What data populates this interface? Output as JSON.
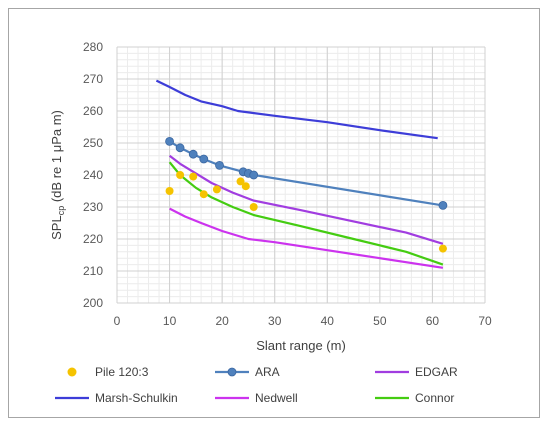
{
  "chart_data": {
    "type": "line",
    "xlabel": "Slant range (m)",
    "ylabel_main": "SPL",
    "ylabel_sub": "cp",
    "ylabel_rest": " (dB re 1 μPa m)",
    "xlim": [
      0,
      70
    ],
    "ylim": [
      200,
      280
    ],
    "x_ticks": [
      0,
      10,
      20,
      30,
      40,
      50,
      60,
      70
    ],
    "y_ticks": [
      200,
      210,
      220,
      230,
      240,
      250,
      260,
      270,
      280
    ],
    "grid": true,
    "legend_position": "bottom",
    "series": [
      {
        "name": "Pile 120:3",
        "kind": "scatter",
        "color": "#f5c300",
        "points": [
          [
            10,
            235
          ],
          [
            12,
            240
          ],
          [
            14.5,
            239.5
          ],
          [
            16.5,
            234
          ],
          [
            19,
            235.5
          ],
          [
            23.5,
            238
          ],
          [
            24.5,
            236.5
          ],
          [
            26,
            230
          ],
          [
            62,
            217
          ]
        ]
      },
      {
        "name": "ARA",
        "kind": "line-markers",
        "color": "#4f81bd",
        "points": [
          [
            10,
            250.5
          ],
          [
            12,
            248.5
          ],
          [
            14.5,
            246.5
          ],
          [
            16.5,
            245
          ],
          [
            19.5,
            243
          ],
          [
            24,
            241
          ],
          [
            25,
            240.5
          ],
          [
            26,
            240
          ],
          [
            62,
            230.5
          ]
        ]
      },
      {
        "name": "EDGAR",
        "kind": "line",
        "color": "#a13de0",
        "points": [
          [
            10,
            246
          ],
          [
            12,
            243.5
          ],
          [
            15,
            240.5
          ],
          [
            18,
            237.5
          ],
          [
            22,
            234.5
          ],
          [
            26,
            232
          ],
          [
            35,
            229
          ],
          [
            45,
            225.5
          ],
          [
            55,
            222
          ],
          [
            62,
            218.5
          ]
        ]
      },
      {
        "name": "Marsh-Schulkin",
        "kind": "line",
        "color": "#3d3dd8",
        "points": [
          [
            7.5,
            269.5
          ],
          [
            10,
            267.5
          ],
          [
            13,
            265
          ],
          [
            16,
            263
          ],
          [
            20,
            261.5
          ],
          [
            23,
            260
          ],
          [
            30,
            258.5
          ],
          [
            40,
            256.5
          ],
          [
            50,
            254
          ],
          [
            61,
            251.5
          ]
        ]
      },
      {
        "name": "Nedwell",
        "kind": "line",
        "color": "#cc33ee",
        "points": [
          [
            10,
            229.5
          ],
          [
            13,
            227
          ],
          [
            16,
            225
          ],
          [
            20,
            222.5
          ],
          [
            25,
            220
          ],
          [
            30,
            219
          ],
          [
            40,
            216.5
          ],
          [
            50,
            214
          ],
          [
            62,
            211
          ]
        ]
      },
      {
        "name": "Connor",
        "kind": "line",
        "color": "#44cc11",
        "points": [
          [
            10,
            244
          ],
          [
            12,
            240
          ],
          [
            15,
            236
          ],
          [
            18,
            233
          ],
          [
            22,
            230
          ],
          [
            26,
            227.5
          ],
          [
            35,
            224
          ],
          [
            45,
            220
          ],
          [
            55,
            216
          ],
          [
            62,
            212
          ]
        ]
      }
    ]
  }
}
